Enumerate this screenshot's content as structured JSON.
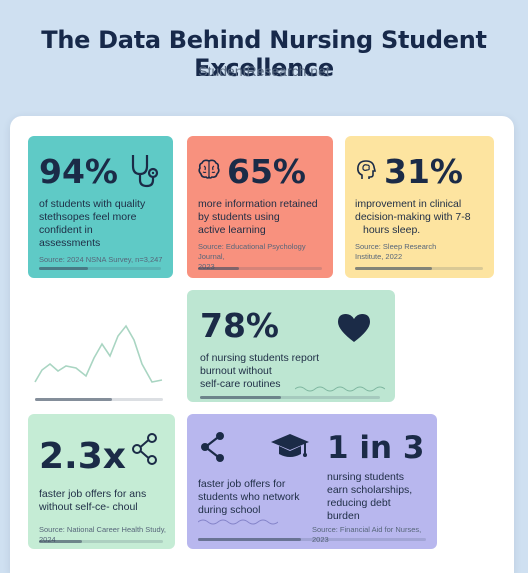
{
  "header": {
    "title": "The Data Behind Nursing Student Excellence",
    "subtitle": "StudentResearch.net"
  },
  "cards": {
    "stethoscope": {
      "stat": "94%",
      "text_lines": [
        "of students with quality",
        "stethsopes feel more",
        "confident in",
        "assessments"
      ],
      "source": "Source: 2024 NSNA Survey, n=3,247",
      "progress": 0.4
    },
    "active_learning": {
      "stat": "65%",
      "text_lines": [
        "more information retained",
        "by students using",
        "active learning"
      ],
      "source_lines": [
        "Source: Educational Psychology Journal,",
        "2023"
      ],
      "progress": 0.33
    },
    "sleep": {
      "stat": "31%",
      "text_lines": [
        "improvement in clinical",
        "decision-making with 7-8",
        "hours sleep."
      ],
      "source_lines": [
        "Source: Sleep Research",
        "Institute, 2022"
      ],
      "progress": 0.6
    },
    "burnout": {
      "stat": "78%",
      "text_lines": [
        "of nursing students report",
        "burnout without",
        "self-care routines"
      ],
      "progress": 0.45
    },
    "job_offers": {
      "stat": "2.3x",
      "text_lines": [
        "faster job offers for ans",
        "without self-ce- choul"
      ],
      "source": "Source: National Career Health Study, 2024",
      "progress": 0.35
    },
    "networking": {
      "text_lines": [
        "faster job offers for",
        "students who network",
        "during school"
      ],
      "progress": 0.45
    },
    "scholarships": {
      "stat": "1 in 3",
      "text_lines": [
        "nursing students",
        "earn scholarships,",
        "reducing debt",
        "burden"
      ],
      "source": "Source: Financial Aid for Nurses, 2023"
    }
  },
  "sparkline": {
    "progress": 0.6
  },
  "colors": {
    "teal": "#5fcac6",
    "coral": "#f8917e",
    "yellow": "#fde4a0",
    "mint": "#bde6d2",
    "mint_light": "#c5ecd5",
    "lavender": "#b8b7ee"
  }
}
